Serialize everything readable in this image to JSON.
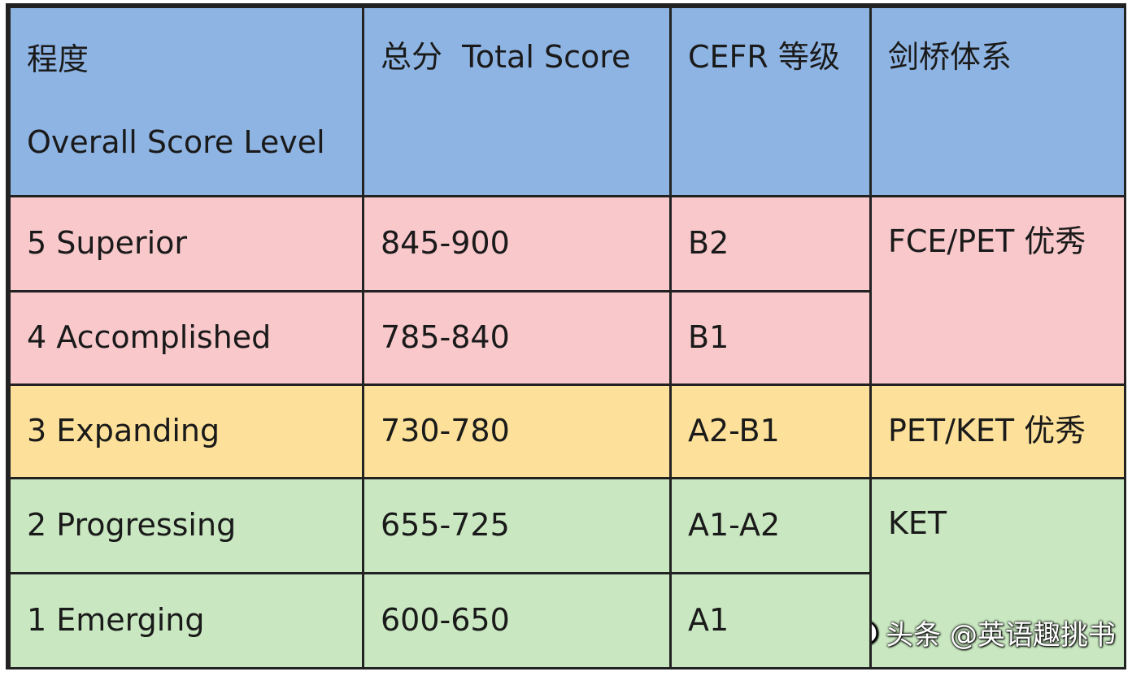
{
  "table": {
    "headers": {
      "level_cn": "程度",
      "level_en": "Overall Score Level",
      "total": "总分  Total Score",
      "cefr": "CEFR 等级",
      "cambridge": "剑桥体系"
    },
    "rows": [
      {
        "level": "5 Superior",
        "score": "845-900",
        "cefr": "B2"
      },
      {
        "level": "4 Accomplished",
        "score": "785-840",
        "cefr": "B1"
      },
      {
        "level": "3 Expanding",
        "score": "730-780",
        "cefr": "A2-B1"
      },
      {
        "level": "2 Progressing",
        "score": "655-725",
        "cefr": "A1-A2"
      },
      {
        "level": "1 Emerging",
        "score": "600-650",
        "cefr": "A1"
      }
    ],
    "cambridge_groups": [
      "FCE/PET 优秀",
      "PET/KET 优秀",
      "KET"
    ]
  },
  "watermark": {
    "text": "头条 @英语趣挑书",
    "icon": "wechat-bubble-icon"
  },
  "colors": {
    "header": "#8eb4e3",
    "red": "#f8c8cb",
    "yellow": "#fde19a",
    "green": "#c9e8c1"
  }
}
